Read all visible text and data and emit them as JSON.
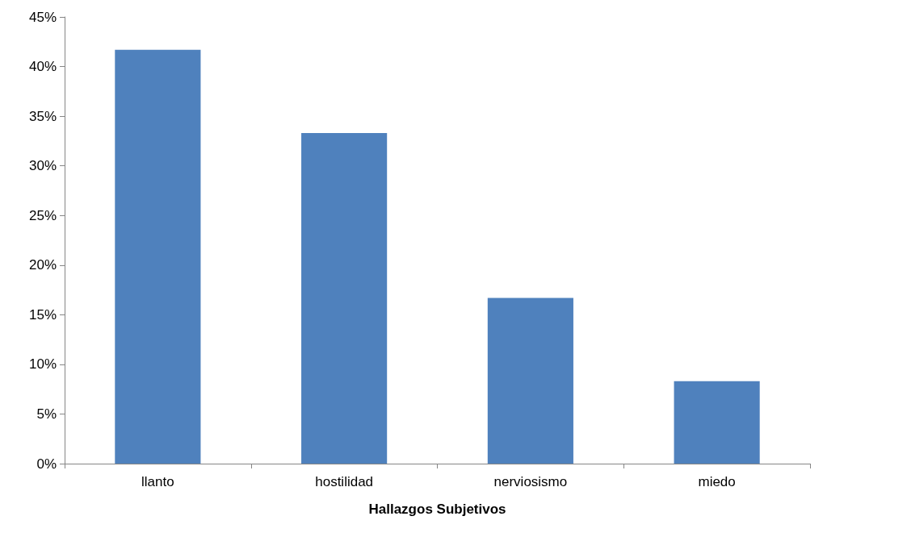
{
  "chart_data": {
    "type": "bar",
    "xlabel": "Hallazgos Subjetivos",
    "categories": [
      "llanto",
      "hostilidad",
      "nerviosismo",
      "miedo"
    ],
    "values": [
      41.7,
      33.3,
      16.7,
      8.3
    ],
    "color": "#4f81bd",
    "ylim": [
      0,
      45
    ],
    "yticks": [
      {
        "value": 0,
        "label": "0%"
      },
      {
        "value": 5,
        "label": "5%"
      },
      {
        "value": 10,
        "label": "10%"
      },
      {
        "value": 15,
        "label": "15%"
      },
      {
        "value": 20,
        "label": "20%"
      },
      {
        "value": 25,
        "label": "25%"
      },
      {
        "value": 30,
        "label": "30%"
      },
      {
        "value": 35,
        "label": "35%"
      },
      {
        "value": 40,
        "label": "40%"
      },
      {
        "value": 45,
        "label": "45%"
      }
    ],
    "grid": false
  }
}
